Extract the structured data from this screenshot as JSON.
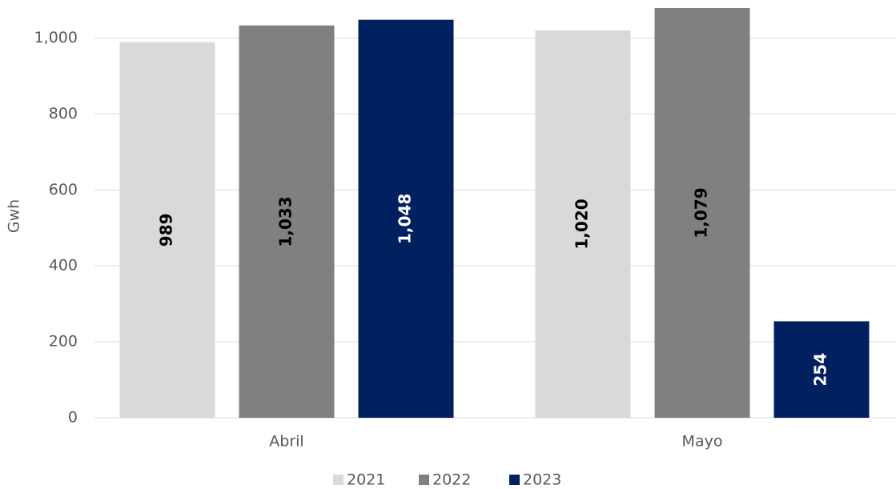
{
  "chart_data": {
    "type": "bar",
    "y_label": "Gwh",
    "categories": [
      "Abril",
      "Mayo"
    ],
    "series": [
      {
        "name": "2021",
        "color": "#d9d9d9",
        "label_color": "#000000",
        "values": [
          989,
          1020
        ],
        "value_labels": [
          "989",
          "1,020"
        ]
      },
      {
        "name": "2022",
        "color": "#808080",
        "label_color": "#000000",
        "values": [
          1033,
          1079
        ],
        "value_labels": [
          "1,033",
          "1,079"
        ]
      },
      {
        "name": "2023",
        "color": "#002060",
        "label_color": "#ffffff",
        "values": [
          1048,
          254
        ],
        "value_labels": [
          "1,048",
          "254"
        ]
      }
    ],
    "ylim": [
      0,
      1100
    ],
    "yticks": [
      0,
      200,
      400,
      600,
      800,
      {
        "value": 1000,
        "label": "1,000"
      }
    ],
    "grid": true,
    "legend": "bottom"
  }
}
